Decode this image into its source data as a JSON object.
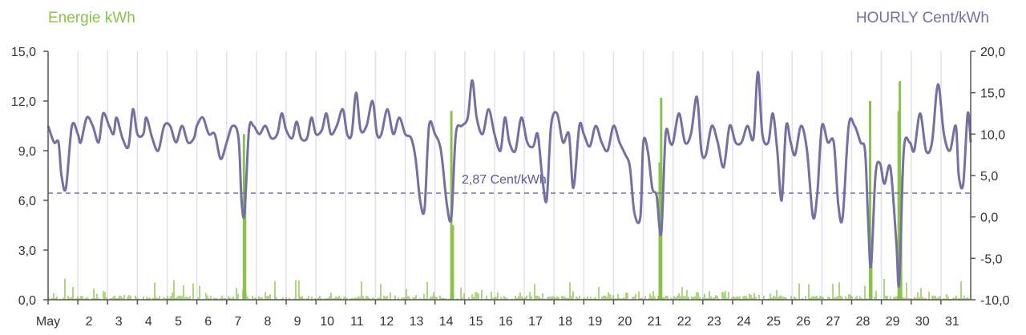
{
  "colors": {
    "energy": "#8bc34a",
    "price": "#7570a3",
    "grid": "#e1e0ef",
    "axis": "#555555",
    "text": "#333333"
  },
  "chart_data": {
    "type": "bar+line",
    "left_axis_title": "Energie kWh",
    "right_axis_title": "HOURLY Cent/kWh",
    "x_ticks": [
      "May",
      "2",
      "3",
      "4",
      "5",
      "6",
      "7",
      "8",
      "9",
      "10",
      "11",
      "12",
      "13",
      "14",
      "15",
      "16",
      "17",
      "18",
      "19",
      "20",
      "21",
      "22",
      "23",
      "24",
      "25",
      "26",
      "27",
      "28",
      "29",
      "30",
      "31"
    ],
    "x_range_days": [
      1,
      32
    ],
    "y_left": {
      "min": 0,
      "max": 15,
      "ticks": [
        "0,0",
        "3,0",
        "6,0",
        "9,0",
        "12,0",
        "15,0"
      ]
    },
    "y_right": {
      "min": -10,
      "max": 20,
      "ticks": [
        "-10,0",
        "-5,0",
        "0,0",
        "5,0",
        "10,0",
        "15,0",
        "20,0"
      ]
    },
    "reference_line": {
      "value": 2.87,
      "label": "2,87 Cent/kWh"
    },
    "energy_spikes": [
      {
        "day": 7.58,
        "value": 10.0
      },
      {
        "day": 7.62,
        "value": 6.0
      },
      {
        "day": 14.55,
        "value": 11.4
      },
      {
        "day": 14.6,
        "value": 4.5
      },
      {
        "day": 21.6,
        "value": 12.2
      },
      {
        "day": 21.55,
        "value": 8.3
      },
      {
        "day": 28.62,
        "value": 12.0
      },
      {
        "day": 28.66,
        "value": 2.5
      },
      {
        "day": 29.62,
        "value": 13.2
      },
      {
        "day": 29.58,
        "value": 11.4
      },
      {
        "day": 29.66,
        "value": 7.5
      }
    ],
    "energy_background_max": 1.3,
    "price_series": [
      [
        1.0,
        11.0
      ],
      [
        1.2,
        9.0
      ],
      [
        1.35,
        9.0
      ],
      [
        1.45,
        5.0
      ],
      [
        1.6,
        3.5
      ],
      [
        1.8,
        11.0
      ],
      [
        2.0,
        10.0
      ],
      [
        2.1,
        9.0
      ],
      [
        2.3,
        12.0
      ],
      [
        2.5,
        11.0
      ],
      [
        2.7,
        9.0
      ],
      [
        2.85,
        12.5
      ],
      [
        3.05,
        11.0
      ],
      [
        3.2,
        10.0
      ],
      [
        3.3,
        12.0
      ],
      [
        3.5,
        9.5
      ],
      [
        3.7,
        8.5
      ],
      [
        3.85,
        13.0
      ],
      [
        4.0,
        10.0
      ],
      [
        4.2,
        10.0
      ],
      [
        4.3,
        12.0
      ],
      [
        4.5,
        9.5
      ],
      [
        4.7,
        8.0
      ],
      [
        4.9,
        11.0
      ],
      [
        5.1,
        11.0
      ],
      [
        5.3,
        9.0
      ],
      [
        5.5,
        11.0
      ],
      [
        5.7,
        9.0
      ],
      [
        5.9,
        9.5
      ],
      [
        6.0,
        11.0
      ],
      [
        6.2,
        12.0
      ],
      [
        6.4,
        10.0
      ],
      [
        6.6,
        10.0
      ],
      [
        6.8,
        7.0
      ],
      [
        7.0,
        9.0
      ],
      [
        7.2,
        11.0
      ],
      [
        7.4,
        9.5
      ],
      [
        7.5,
        2.0
      ],
      [
        7.6,
        0.5
      ],
      [
        7.75,
        10.5
      ],
      [
        7.9,
        11.0
      ],
      [
        8.1,
        10.0
      ],
      [
        8.3,
        11.0
      ],
      [
        8.5,
        9.5
      ],
      [
        8.7,
        10.0
      ],
      [
        8.85,
        12.5
      ],
      [
        9.0,
        10.5
      ],
      [
        9.2,
        9.5
      ],
      [
        9.35,
        11.5
      ],
      [
        9.5,
        9.5
      ],
      [
        9.7,
        9.5
      ],
      [
        9.85,
        12.0
      ],
      [
        10.0,
        10.0
      ],
      [
        10.2,
        10.5
      ],
      [
        10.35,
        12.5
      ],
      [
        10.5,
        10.0
      ],
      [
        10.7,
        11.0
      ],
      [
        10.9,
        13.0
      ],
      [
        11.05,
        10.0
      ],
      [
        11.2,
        10.0
      ],
      [
        11.35,
        15.0
      ],
      [
        11.5,
        10.5
      ],
      [
        11.7,
        11.0
      ],
      [
        11.9,
        14.0
      ],
      [
        12.05,
        10.0
      ],
      [
        12.2,
        10.0
      ],
      [
        12.4,
        13.0
      ],
      [
        12.6,
        10.0
      ],
      [
        12.8,
        12.0
      ],
      [
        13.0,
        10.0
      ],
      [
        13.2,
        9.5
      ],
      [
        13.35,
        7.0
      ],
      [
        13.5,
        2.0
      ],
      [
        13.65,
        1.0
      ],
      [
        13.8,
        11.0
      ],
      [
        14.0,
        10.0
      ],
      [
        14.2,
        8.0
      ],
      [
        14.4,
        1.5
      ],
      [
        14.55,
        0.0
      ],
      [
        14.7,
        10.0
      ],
      [
        14.9,
        11.0
      ],
      [
        15.1,
        12.0
      ],
      [
        15.25,
        16.5
      ],
      [
        15.4,
        12.0
      ],
      [
        15.6,
        10.0
      ],
      [
        15.8,
        13.0
      ],
      [
        16.0,
        10.0
      ],
      [
        16.2,
        8.0
      ],
      [
        16.35,
        12.0
      ],
      [
        16.5,
        9.0
      ],
      [
        16.7,
        8.0
      ],
      [
        16.9,
        12.0
      ],
      [
        17.1,
        9.0
      ],
      [
        17.3,
        8.5
      ],
      [
        17.45,
        10.0
      ],
      [
        17.6,
        5.0
      ],
      [
        17.75,
        2.0
      ],
      [
        17.9,
        11.0
      ],
      [
        18.1,
        12.5
      ],
      [
        18.3,
        9.0
      ],
      [
        18.5,
        10.0
      ],
      [
        18.65,
        3.5
      ],
      [
        18.85,
        11.0
      ],
      [
        19.0,
        10.0
      ],
      [
        19.2,
        8.5
      ],
      [
        19.4,
        11.0
      ],
      [
        19.6,
        9.0
      ],
      [
        19.8,
        8.0
      ],
      [
        20.0,
        11.0
      ],
      [
        20.2,
        9.0
      ],
      [
        20.4,
        7.5
      ],
      [
        20.55,
        6.0
      ],
      [
        20.7,
        0.5
      ],
      [
        20.9,
        0.0
      ],
      [
        21.0,
        9.0
      ],
      [
        21.15,
        8.0
      ],
      [
        21.3,
        3.5
      ],
      [
        21.45,
        2.5
      ],
      [
        21.6,
        -2.0
      ],
      [
        21.75,
        10.0
      ],
      [
        21.9,
        9.0
      ],
      [
        22.0,
        9.0
      ],
      [
        22.2,
        12.5
      ],
      [
        22.4,
        9.0
      ],
      [
        22.6,
        10.0
      ],
      [
        22.8,
        14.5
      ],
      [
        22.95,
        8.0
      ],
      [
        23.1,
        7.5
      ],
      [
        23.3,
        11.0
      ],
      [
        23.5,
        9.0
      ],
      [
        23.7,
        6.0
      ],
      [
        23.9,
        11.0
      ],
      [
        24.1,
        9.0
      ],
      [
        24.3,
        9.0
      ],
      [
        24.5,
        11.0
      ],
      [
        24.7,
        9.5
      ],
      [
        24.85,
        17.5
      ],
      [
        25.0,
        10.0
      ],
      [
        25.2,
        9.0
      ],
      [
        25.35,
        12.5
      ],
      [
        25.5,
        8.0
      ],
      [
        25.65,
        2.0
      ],
      [
        25.8,
        11.0
      ],
      [
        25.95,
        9.0
      ],
      [
        26.1,
        7.5
      ],
      [
        26.3,
        11.0
      ],
      [
        26.5,
        8.0
      ],
      [
        26.7,
        0.0
      ],
      [
        26.85,
        3.0
      ],
      [
        27.0,
        11.0
      ],
      [
        27.2,
        9.0
      ],
      [
        27.4,
        9.0
      ],
      [
        27.55,
        1.5
      ],
      [
        27.7,
        0.0
      ],
      [
        27.9,
        11.0
      ],
      [
        28.1,
        11.0
      ],
      [
        28.3,
        9.0
      ],
      [
        28.45,
        8.0
      ],
      [
        28.55,
        0.0
      ],
      [
        28.65,
        -6.0
      ],
      [
        28.8,
        5.0
      ],
      [
        28.95,
        6.5
      ],
      [
        29.1,
        4.0
      ],
      [
        29.3,
        6.0
      ],
      [
        29.5,
        -3.0
      ],
      [
        29.6,
        -8.0
      ],
      [
        29.75,
        8.0
      ],
      [
        29.95,
        9.0
      ],
      [
        30.1,
        8.0
      ],
      [
        30.3,
        12.5
      ],
      [
        30.5,
        8.0
      ],
      [
        30.7,
        9.0
      ],
      [
        30.9,
        16.0
      ],
      [
        31.1,
        10.0
      ],
      [
        31.3,
        8.0
      ],
      [
        31.5,
        11.0
      ],
      [
        31.6,
        5.0
      ],
      [
        31.75,
        4.0
      ],
      [
        31.9,
        12.5
      ],
      [
        32.0,
        9.0
      ]
    ]
  }
}
